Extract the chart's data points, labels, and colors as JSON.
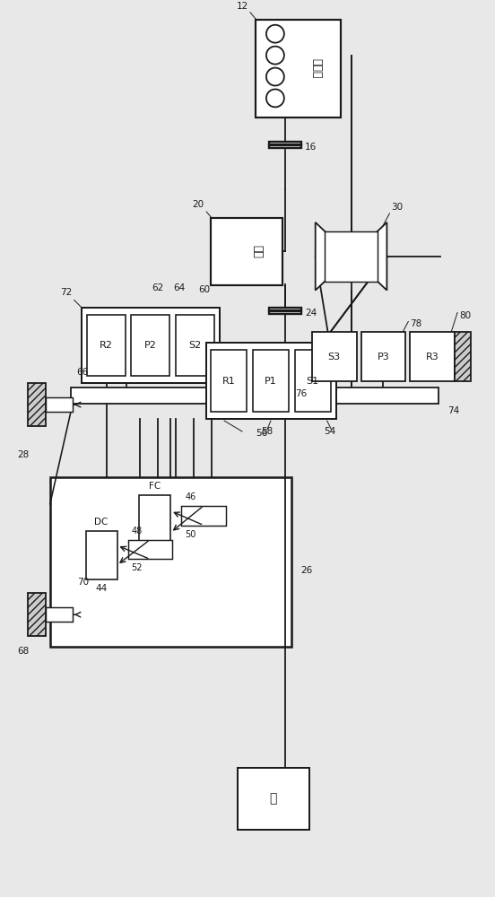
{
  "bg_color": "#e8e8e8",
  "line_color": "#1a1a1a",
  "box_fill": "#ffffff",
  "fig_w": 5.52,
  "fig_h": 10.0,
  "dpi": 100,
  "lw": 1.3,
  "engine_label": "发动机",
  "motor_label": "电机",
  "pump_label": "泵"
}
